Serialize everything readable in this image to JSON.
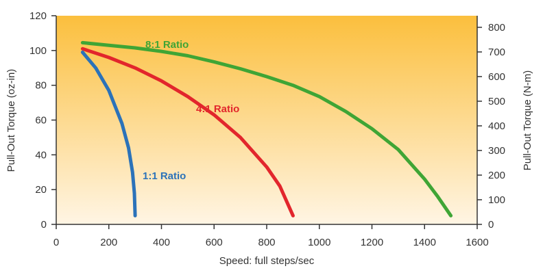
{
  "chart_data": {
    "type": "line",
    "title": "",
    "xlabel": "Speed: full steps/sec",
    "ylabel": "Pull-Out Torque (oz-in)",
    "y2label": "Pull-Out Torque (N-m)",
    "xlim": [
      0,
      1600
    ],
    "ylim": [
      0,
      120
    ],
    "y2lim": [
      0,
      847
    ],
    "xticks": [
      "0",
      "200",
      "400",
      "600",
      "800",
      "1000",
      "1200",
      "1400",
      "1600"
    ],
    "yticks": [
      "0",
      "20",
      "40",
      "60",
      "80",
      "100",
      "120"
    ],
    "y2ticks": [
      "0",
      "100",
      "200",
      "300",
      "400",
      "500",
      "600",
      "700",
      "800"
    ],
    "background": {
      "top": "#fbbf3d",
      "bottom": "#fff5e4"
    },
    "legend": "inline labels",
    "grid": false,
    "series": [
      {
        "name": "8:1 Ratio",
        "color": "#3fa535",
        "points": [
          [
            100,
            104.5
          ],
          [
            200,
            103
          ],
          [
            300,
            101.5
          ],
          [
            400,
            99.5
          ],
          [
            500,
            97
          ],
          [
            600,
            93.5
          ],
          [
            700,
            89.5
          ],
          [
            800,
            85
          ],
          [
            900,
            80
          ],
          [
            1000,
            73.5
          ],
          [
            1100,
            65
          ],
          [
            1200,
            55
          ],
          [
            1300,
            43
          ],
          [
            1400,
            26
          ],
          [
            1450,
            16
          ],
          [
            1500,
            5
          ]
        ]
      },
      {
        "name": "4:1 Ratio",
        "color": "#e2262c",
        "points": [
          [
            100,
            101
          ],
          [
            200,
            96
          ],
          [
            300,
            90
          ],
          [
            400,
            82.5
          ],
          [
            500,
            73.5
          ],
          [
            600,
            63
          ],
          [
            700,
            50
          ],
          [
            800,
            33
          ],
          [
            850,
            22
          ],
          [
            900,
            5
          ]
        ]
      },
      {
        "name": "1:1 Ratio",
        "color": "#2b72b9",
        "points": [
          [
            100,
            99
          ],
          [
            150,
            90
          ],
          [
            200,
            77
          ],
          [
            250,
            58
          ],
          [
            275,
            44
          ],
          [
            290,
            30
          ],
          [
            297,
            18
          ],
          [
            300,
            5
          ]
        ]
      }
    ]
  }
}
